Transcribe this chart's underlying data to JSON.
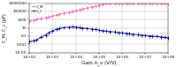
{
  "title": "",
  "xlabel": "Gain A_v (V/V)",
  "ylabel": "C_M, C_c (pF)",
  "cm_color": "#FF69B4",
  "cc_color": "#00008B",
  "legend_labels": [
    "C_M",
    "C_C"
  ],
  "gain_values": [
    100,
    150,
    200,
    300,
    500,
    700,
    1000,
    1500,
    2000,
    3000,
    5000,
    7000,
    10000,
    15000,
    20000,
    30000,
    50000,
    70000,
    100000,
    150000,
    200000,
    300000,
    500000,
    700000,
    1000000,
    1500000,
    2000000,
    3000000,
    5000000,
    7000000,
    10000000,
    15000000,
    20000000,
    30000000,
    50000000,
    70000000,
    100000000
  ],
  "cm_values": [
    500,
    800,
    1200,
    2000,
    3500,
    5000,
    8000,
    14000,
    20000,
    35000,
    65000,
    100000,
    160000,
    280000,
    420000,
    700000,
    1300000,
    2000000,
    3500000,
    6000000,
    9000000,
    10000000,
    10000000,
    10000000,
    10000000,
    10000000,
    10000000,
    10000000,
    10000000,
    10000000,
    10000000,
    10000000,
    10000000,
    10000000,
    10000000,
    10000000,
    10000000
  ],
  "cc_values": [
    0.005,
    0.008,
    0.012,
    0.05,
    0.2,
    0.8,
    2,
    5,
    8,
    12,
    16,
    18,
    16,
    12,
    10,
    7,
    5,
    4,
    3,
    2.2,
    1.8,
    1.4,
    1.0,
    0.8,
    0.6,
    0.5,
    0.4,
    0.3,
    0.22,
    0.18,
    0.15,
    0.12,
    0.1,
    0.08,
    0.06,
    0.05,
    0.04
  ],
  "background_color": "#FFFFFF",
  "grid_color": "#C0C0C0",
  "xlim": [
    100,
    100000000
  ],
  "ylim": [
    1e-05,
    10000000
  ],
  "x_ticks": [
    100,
    1000,
    10000,
    100000,
    1000000,
    10000000,
    100000000
  ],
  "x_tick_labels": [
    "1.E+02",
    "1.E+03",
    "1.E+04",
    "1.E+05",
    "1.E+06",
    "1.E+07",
    "1.E+08"
  ],
  "y_ticks": [
    1e-05,
    0.001,
    0.1,
    10,
    1000,
    100000,
    10000000
  ],
  "y_tick_labels": [
    "1.E-05",
    "0.001",
    "0.1",
    "10",
    "1000",
    "100000",
    "10000000"
  ]
}
